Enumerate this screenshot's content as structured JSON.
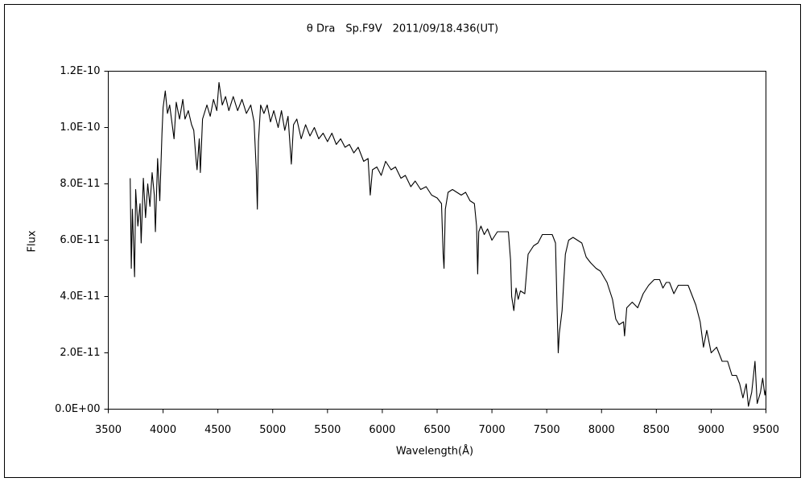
{
  "chart_data": {
    "type": "line",
    "title": "θ Dra　Sp.F9V　2011/09/18.436(UT)",
    "x_label": "Wavelength(Å)",
    "y_label": "Flux",
    "color": "#000000",
    "xlim": [
      3500,
      9500
    ],
    "xticks": [
      3500,
      4000,
      4500,
      5000,
      5500,
      6000,
      6500,
      7000,
      7500,
      8000,
      8500,
      9000,
      9500
    ],
    "ylim": [
      0,
      1.2e-10
    ],
    "yticks": [
      {
        "value": 0,
        "label": "0.0E+00"
      },
      {
        "value": 2e-11,
        "label": "2.0E-11"
      },
      {
        "value": 4e-11,
        "label": "4.0E-11"
      },
      {
        "value": 6e-11,
        "label": "6.0E-11"
      },
      {
        "value": 8e-11,
        "label": "8.0E-11"
      },
      {
        "value": 1e-10,
        "label": "1.0E-10"
      },
      {
        "value": 1.2e-10,
        "label": "1.2E-10"
      }
    ],
    "grid": false,
    "x": [
      3700,
      3710,
      3720,
      3740,
      3750,
      3770,
      3790,
      3800,
      3820,
      3840,
      3860,
      3880,
      3900,
      3920,
      3930,
      3950,
      3970,
      3990,
      4000,
      4020,
      4040,
      4060,
      4080,
      4100,
      4120,
      4150,
      4180,
      4200,
      4230,
      4260,
      4280,
      4300,
      4310,
      4330,
      4340,
      4360,
      4400,
      4430,
      4460,
      4490,
      4510,
      4540,
      4570,
      4600,
      4640,
      4680,
      4720,
      4760,
      4800,
      4830,
      4850,
      4860,
      4870,
      4890,
      4920,
      4950,
      4980,
      5010,
      5050,
      5080,
      5110,
      5140,
      5170,
      5190,
      5220,
      5260,
      5300,
      5340,
      5380,
      5420,
      5460,
      5500,
      5540,
      5580,
      5620,
      5660,
      5700,
      5740,
      5780,
      5830,
      5870,
      5890,
      5910,
      5950,
      5990,
      6030,
      6080,
      6120,
      6170,
      6210,
      6260,
      6300,
      6350,
      6400,
      6450,
      6500,
      6540,
      6555,
      6563,
      6575,
      6600,
      6640,
      6680,
      6720,
      6760,
      6800,
      6840,
      6860,
      6870,
      6880,
      6900,
      6930,
      6960,
      7000,
      7050,
      7100,
      7150,
      7170,
      7180,
      7200,
      7220,
      7240,
      7260,
      7300,
      7330,
      7380,
      7420,
      7460,
      7500,
      7550,
      7580,
      7595,
      7605,
      7615,
      7640,
      7670,
      7700,
      7740,
      7780,
      7820,
      7860,
      7900,
      7950,
      7990,
      8050,
      8100,
      8130,
      8160,
      8200,
      8210,
      8230,
      8280,
      8330,
      8380,
      8430,
      8480,
      8530,
      8560,
      8590,
      8620,
      8660,
      8700,
      8750,
      8790,
      8830,
      8860,
      8900,
      8930,
      8960,
      9000,
      9050,
      9100,
      9150,
      9190,
      9230,
      9260,
      9290,
      9320,
      9340,
      9370,
      9400,
      9420,
      9450,
      9470,
      9490,
      9500
    ],
    "values": [
      8.2e-11,
      5e-11,
      7.1e-11,
      4.7e-11,
      7.8e-11,
      6.5e-11,
      7.3e-11,
      5.9e-11,
      8.2e-11,
      6.8e-11,
      8e-11,
      7.2e-11,
      8.4e-11,
      7.6e-11,
      6.3e-11,
      8.9e-11,
      7.4e-11,
      9.8e-11,
      1.07e-10,
      1.13e-10,
      1.05e-10,
      1.08e-10,
      1.02e-10,
      9.6e-11,
      1.09e-10,
      1.03e-10,
      1.1e-10,
      1.03e-10,
      1.06e-10,
      1.01e-10,
      9.9e-11,
      8.9e-11,
      8.5e-11,
      9.6e-11,
      8.4e-11,
      1.03e-10,
      1.08e-10,
      1.04e-10,
      1.1e-10,
      1.06e-10,
      1.16e-10,
      1.08e-10,
      1.11e-10,
      1.06e-10,
      1.11e-10,
      1.06e-10,
      1.1e-10,
      1.05e-10,
      1.08e-10,
      1.02e-10,
      8.5e-11,
      7.1e-11,
      9.5e-11,
      1.08e-10,
      1.05e-10,
      1.08e-10,
      1.02e-10,
      1.06e-10,
      1e-10,
      1.06e-10,
      9.9e-11,
      1.04e-10,
      8.7e-11,
      1.01e-10,
      1.03e-10,
      9.6e-11,
      1.01e-10,
      9.7e-11,
      1e-10,
      9.6e-11,
      9.8e-11,
      9.5e-11,
      9.8e-11,
      9.4e-11,
      9.6e-11,
      9.3e-11,
      9.4e-11,
      9.1e-11,
      9.3e-11,
      8.8e-11,
      8.9e-11,
      7.6e-11,
      8.5e-11,
      8.6e-11,
      8.3e-11,
      8.8e-11,
      8.5e-11,
      8.6e-11,
      8.2e-11,
      8.3e-11,
      7.9e-11,
      8.1e-11,
      7.8e-11,
      7.9e-11,
      7.6e-11,
      7.5e-11,
      7.3e-11,
      5.5e-11,
      5e-11,
      7.1e-11,
      7.7e-11,
      7.8e-11,
      7.7e-11,
      7.6e-11,
      7.7e-11,
      7.4e-11,
      7.3e-11,
      6.5e-11,
      4.8e-11,
      6.3e-11,
      6.5e-11,
      6.2e-11,
      6.4e-11,
      6e-11,
      6.3e-11,
      6.3e-11,
      6.3e-11,
      5.3e-11,
      4e-11,
      3.5e-11,
      4.3e-11,
      3.9e-11,
      4.2e-11,
      4.1e-11,
      5.5e-11,
      5.8e-11,
      5.9e-11,
      6.2e-11,
      6.2e-11,
      6.2e-11,
      5.9e-11,
      3.5e-11,
      2e-11,
      2.7e-11,
      3.5e-11,
      5.5e-11,
      6e-11,
      6.1e-11,
      6e-11,
      5.9e-11,
      5.4e-11,
      5.2e-11,
      5e-11,
      4.9e-11,
      4.5e-11,
      3.9e-11,
      3.2e-11,
      3e-11,
      3.1e-11,
      2.6e-11,
      3.6e-11,
      3.8e-11,
      3.6e-11,
      4.1e-11,
      4.4e-11,
      4.6e-11,
      4.6e-11,
      4.3e-11,
      4.5e-11,
      4.5e-11,
      4.1e-11,
      4.4e-11,
      4.4e-11,
      4.4e-11,
      4e-11,
      3.7e-11,
      3.1e-11,
      2.2e-11,
      2.8e-11,
      2e-11,
      2.2e-11,
      1.7e-11,
      1.7e-11,
      1.2e-11,
      1.2e-11,
      9e-12,
      4e-12,
      9e-12,
      1e-12,
      6e-12,
      1.7e-11,
      2e-12,
      6e-12,
      1.1e-11,
      5e-12,
      7e-12
    ]
  }
}
